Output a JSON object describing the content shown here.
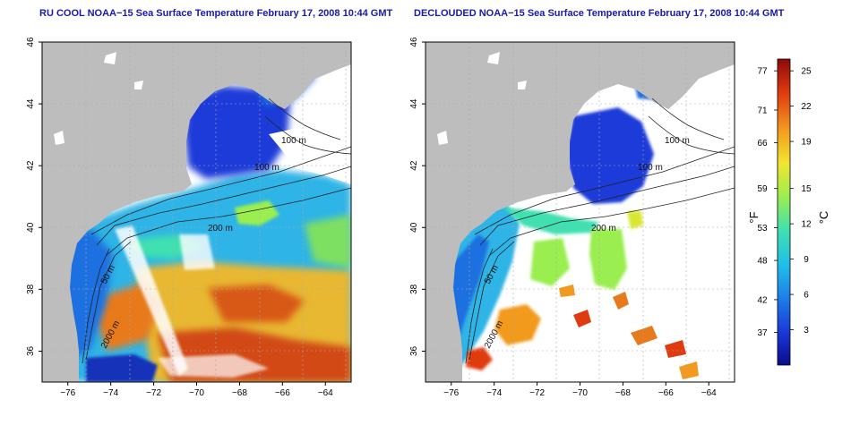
{
  "panels": [
    {
      "title": "RU COOL NOAA−15 Sea Surface Temperature February 17, 2008 10:44 GMT",
      "cloud_masked": false
    },
    {
      "title": "DECLOUDED NOAA−15 Sea Surface Temperature February 17, 2008 10:44 GMT",
      "cloud_masked": true
    }
  ],
  "chart_data": [
    {
      "type": "heatmap",
      "title": "RU COOL NOAA−15 Sea Surface Temperature February 17, 2008 10:44 GMT",
      "xlim": [
        -77.2,
        -62.8
      ],
      "ylim": [
        35.0,
        46.0
      ],
      "x_ticks": [
        -76,
        -74,
        -72,
        -70,
        -68,
        -66,
        -64
      ],
      "y_ticks": [
        36,
        38,
        40,
        42,
        44,
        46
      ],
      "grid": true,
      "contour_labels": [
        "100 m",
        "100 m",
        "200 m",
        "50 m",
        "2000 m"
      ]
    },
    {
      "type": "heatmap",
      "title": "DECLOUDED NOAA−15 Sea Surface Temperature February 17, 2008 10:44 GMT",
      "xlim": [
        -77.2,
        -62.8
      ],
      "ylim": [
        35.0,
        46.0
      ],
      "x_ticks": [
        -76,
        -74,
        -72,
        -70,
        -68,
        -66,
        -64
      ],
      "y_ticks": [
        36,
        38,
        40,
        42,
        44,
        46
      ],
      "grid": true,
      "contour_labels": [
        "100 m",
        "100 m",
        "200 m",
        "50 m",
        "2000 m"
      ]
    }
  ],
  "colorbar": {
    "label_f": "°F",
    "label_c": "°C",
    "range_c": [
      0,
      26
    ],
    "ticks_f": [
      77,
      71,
      66,
      59,
      53,
      48,
      42,
      37
    ],
    "ticks_c": [
      25,
      22,
      19,
      15,
      12,
      9,
      6,
      3
    ],
    "colors": [
      "#0b0b8c",
      "#1a3ad8",
      "#1e7fe8",
      "#20c0e8",
      "#40e0b0",
      "#9aee50",
      "#f2e630",
      "#f29a1e",
      "#e03a10",
      "#8c0a0a"
    ]
  },
  "colors": {
    "land": "#bdbdbd",
    "title": "#1a1aa8"
  }
}
